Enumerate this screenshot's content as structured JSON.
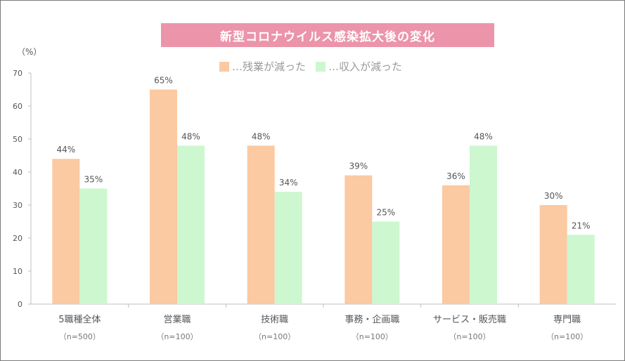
{
  "chart_data": {
    "type": "bar",
    "title": "新型コロナウイルス感染拡大後の変化",
    "ylabel": "（%）",
    "ylim": [
      0,
      70
    ],
    "yticks": [
      0,
      10,
      20,
      30,
      40,
      50,
      60,
      70
    ],
    "categories": [
      "5職種全体",
      "営業職",
      "技術職",
      "事務・企画職",
      "サービス・販売職",
      "専門職"
    ],
    "sublabels": [
      "（n=500）",
      "（n=100）",
      "（n=100）",
      "（n=100）",
      "（n=100）",
      "（n=100）"
    ],
    "series": [
      {
        "name": "…残業が減った",
        "values": [
          44,
          65,
          48,
          39,
          36,
          30
        ],
        "labels": [
          "44%",
          "65%",
          "48%",
          "39%",
          "36%",
          "30%"
        ],
        "color": "#fbc9a2"
      },
      {
        "name": "…収入が減った",
        "values": [
          35,
          48,
          34,
          25,
          48,
          21
        ],
        "labels": [
          "35%",
          "48%",
          "34%",
          "25%",
          "48%",
          "21%"
        ],
        "color": "#ccf7cf"
      }
    ],
    "grid": false,
    "legend": "top"
  }
}
